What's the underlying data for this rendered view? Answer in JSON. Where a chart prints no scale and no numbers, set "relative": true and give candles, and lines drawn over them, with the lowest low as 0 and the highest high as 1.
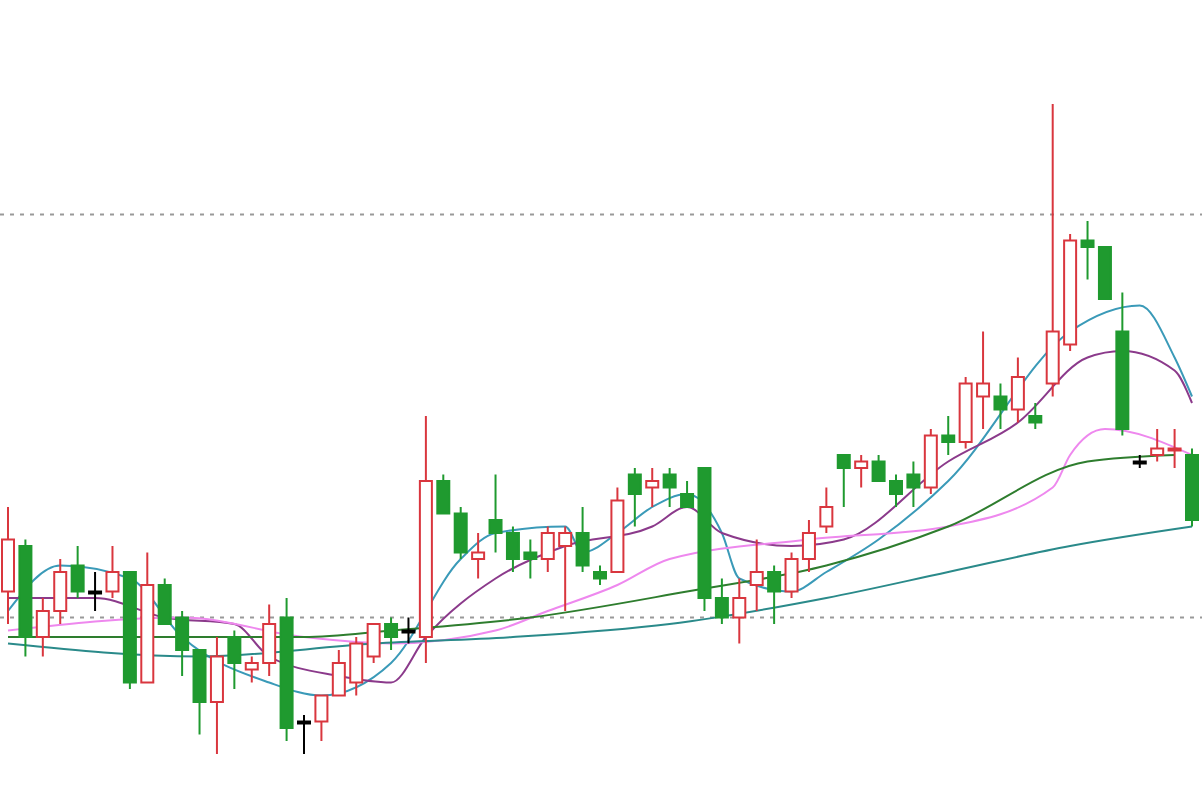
{
  "chart_data": {
    "type": "candlestick",
    "relative": true,
    "tick_labels": false,
    "categories": [
      null,
      null,
      null,
      null,
      null,
      null,
      null,
      null,
      null,
      null,
      null,
      null,
      null,
      null,
      null,
      null,
      null,
      null,
      null,
      null,
      null,
      null,
      null,
      null,
      null,
      null,
      null,
      null,
      null,
      null,
      null,
      null,
      null,
      null,
      null,
      null,
      null,
      null,
      null,
      null,
      null,
      null,
      null,
      null,
      null,
      null,
      null,
      null,
      null,
      null,
      null,
      null,
      null,
      null,
      null,
      null,
      null,
      null,
      null,
      null,
      null,
      null,
      null,
      null,
      null,
      null,
      null,
      null,
      null
    ],
    "ohlc": [
      [
        0.25,
        0.38,
        0.2,
        0.33
      ],
      [
        0.32,
        0.33,
        0.15,
        0.18
      ],
      [
        0.18,
        0.24,
        0.15,
        0.22
      ],
      [
        0.22,
        0.3,
        0.2,
        0.28
      ],
      [
        0.29,
        0.32,
        0.24,
        0.25
      ],
      [
        0.25,
        0.28,
        0.22,
        0.25
      ],
      [
        0.25,
        0.32,
        0.24,
        0.28
      ],
      [
        0.28,
        0.28,
        0.1,
        0.11
      ],
      [
        0.11,
        0.31,
        0.11,
        0.26
      ],
      [
        0.26,
        0.27,
        0.2,
        0.2
      ],
      [
        0.21,
        0.22,
        0.12,
        0.16
      ],
      [
        0.16,
        0.16,
        0.03,
        0.08
      ],
      [
        0.08,
        0.18,
        0,
        0.15
      ],
      [
        0.18,
        0.19,
        0.1,
        0.14
      ],
      [
        0.13,
        0.15,
        0.11,
        0.14
      ],
      [
        0.14,
        0.23,
        0.12,
        0.2
      ],
      [
        0.21,
        0.24,
        0.02,
        0.04
      ],
      [
        0.05,
        0.06,
        0,
        0.05
      ],
      [
        0.05,
        0.09,
        0.02,
        0.09
      ],
      [
        0.09,
        0.16,
        0.09,
        0.14
      ],
      [
        0.11,
        0.18,
        0.09,
        0.17
      ],
      [
        0.15,
        0.2,
        0.14,
        0.2
      ],
      [
        0.2,
        0.21,
        0.16,
        0.18
      ],
      [
        0.19,
        0.21,
        0.17,
        0.19
      ],
      [
        0.18,
        0.52,
        0.14,
        0.42
      ],
      [
        0.42,
        0.43,
        0.37,
        0.37
      ],
      [
        0.37,
        0.38,
        0.3,
        0.31
      ],
      [
        0.3,
        0.34,
        0.27,
        0.31
      ],
      [
        0.36,
        0.43,
        0.31,
        0.34
      ],
      [
        0.34,
        0.35,
        0.28,
        0.3
      ],
      [
        0.31,
        0.33,
        0.27,
        0.3
      ],
      [
        0.3,
        0.35,
        0.28,
        0.34
      ],
      [
        0.32,
        0.35,
        0.22,
        0.34
      ],
      [
        0.34,
        0.38,
        0.28,
        0.29
      ],
      [
        0.28,
        0.29,
        0.26,
        0.27
      ],
      [
        0.28,
        0.41,
        0.28,
        0.39
      ],
      [
        0.43,
        0.44,
        0.35,
        0.4
      ],
      [
        0.41,
        0.44,
        0.38,
        0.42
      ],
      [
        0.43,
        0.44,
        0.38,
        0.41
      ],
      [
        0.4,
        0.42,
        0.38,
        0.38
      ],
      [
        0.44,
        0.44,
        0.22,
        0.24
      ],
      [
        0.24,
        0.27,
        0.2,
        0.21
      ],
      [
        0.21,
        0.27,
        0.17,
        0.24
      ],
      [
        0.26,
        0.33,
        0.22,
        0.28
      ],
      [
        0.28,
        0.29,
        0.2,
        0.25
      ],
      [
        0.25,
        0.31,
        0.24,
        0.3
      ],
      [
        0.3,
        0.36,
        0.28,
        0.34
      ],
      [
        0.35,
        0.41,
        0.34,
        0.38
      ],
      [
        0.46,
        0.46,
        0.38,
        0.44
      ],
      [
        0.44,
        0.46,
        0.41,
        0.45
      ],
      [
        0.45,
        0.46,
        0.42,
        0.42
      ],
      [
        0.42,
        0.43,
        0.38,
        0.4
      ],
      [
        0.43,
        0.45,
        0.38,
        0.41
      ],
      [
        0.41,
        0.5,
        0.4,
        0.49
      ],
      [
        0.49,
        0.52,
        0.46,
        0.48
      ],
      [
        0.48,
        0.58,
        0.47,
        0.57
      ],
      [
        0.55,
        0.65,
        0.5,
        0.57
      ],
      [
        0.55,
        0.57,
        0.5,
        0.53
      ],
      [
        0.53,
        0.61,
        0.51,
        0.58
      ],
      [
        0.52,
        0.54,
        0.5,
        0.51
      ],
      [
        0.57,
        1,
        0.55,
        0.65
      ],
      [
        0.63,
        0.8,
        0.62,
        0.79
      ],
      [
        0.79,
        0.82,
        0.73,
        0.78
      ],
      [
        0.78,
        0.78,
        0.7,
        0.7
      ],
      [
        0.65,
        0.71,
        0.49,
        0.5
      ],
      [
        0.45,
        0.46,
        0.44,
        0.45
      ],
      [
        0.46,
        0.5,
        0.45,
        0.47
      ],
      [
        0.47,
        0.5,
        0.44,
        0.47
      ],
      [
        0.46,
        0.47,
        0.35,
        0.36
      ]
    ],
    "colors": [
      "#d9363e",
      "#1f9a2f",
      "#d9363e",
      "#d9363e",
      "#1f9a2f",
      "#000000",
      "#d9363e",
      "#1f9a2f",
      "#d9363e",
      "#1f9a2f",
      "#1f9a2f",
      "#1f9a2f",
      "#d9363e",
      "#1f9a2f",
      "#d9363e",
      "#d9363e",
      "#1f9a2f",
      "#000000",
      "#d9363e",
      "#d9363e",
      "#d9363e",
      "#d9363e",
      "#1f9a2f",
      "#000000",
      "#d9363e",
      "#1f9a2f",
      "#1f9a2f",
      "#d9363e",
      "#1f9a2f",
      "#1f9a2f",
      "#1f9a2f",
      "#d9363e",
      "#d9363e",
      "#1f9a2f",
      "#1f9a2f",
      "#d9363e",
      "#1f9a2f",
      "#d9363e",
      "#1f9a2f",
      "#1f9a2f",
      "#1f9a2f",
      "#1f9a2f",
      "#d9363e",
      "#d9363e",
      "#1f9a2f",
      "#d9363e",
      "#d9363e",
      "#d9363e",
      "#1f9a2f",
      "#d9363e",
      "#1f9a2f",
      "#1f9a2f",
      "#1f9a2f",
      "#d9363e",
      "#1f9a2f",
      "#d9363e",
      "#d9363e",
      "#1f9a2f",
      "#d9363e",
      "#1f9a2f",
      "#d9363e",
      "#d9363e",
      "#1f9a2f",
      "#1f9a2f",
      "#1f9a2f",
      "#000000",
      "#d9363e",
      "#d9363e",
      "#1f9a2f"
    ],
    "series": [
      {
        "type": "line",
        "color": "#3a9ab8",
        "values": [
          0.22,
          null,
          null,
          0.29,
          null,
          null,
          null,
          0.27,
          null,
          null,
          0.18,
          null,
          null,
          null,
          null,
          0.11,
          null,
          null,
          0.09,
          null,
          null,
          null,
          0.14,
          null,
          null,
          null,
          0.3,
          null,
          0.34,
          null,
          null,
          null,
          0.35,
          0.31,
          null,
          0.34,
          null,
          0.38,
          null,
          0.4,
          null,
          0.34,
          0.27,
          null,
          null,
          0.25,
          null,
          0.28,
          null,
          null,
          0.33,
          null,
          null,
          null,
          0.42,
          null,
          null,
          null,
          null,
          null,
          null,
          0.65,
          null,
          null,
          null,
          0.69,
          null,
          0.61,
          0.55
        ]
      },
      {
        "type": "line",
        "color": "#8b3a8b",
        "values": [
          0.24,
          null,
          null,
          null,
          null,
          0.24,
          null,
          null,
          null,
          0.21,
          null,
          null,
          null,
          0.2,
          null,
          0.15,
          null,
          null,
          null,
          0.12,
          null,
          null,
          0.11,
          null,
          0.18,
          null,
          null,
          null,
          0.27,
          null,
          null,
          null,
          0.32,
          null,
          null,
          null,
          null,
          0.35,
          null,
          0.38,
          null,
          0.34,
          null,
          null,
          null,
          0.32,
          null,
          null,
          0.33,
          null,
          null,
          null,
          null,
          null,
          0.45,
          null,
          null,
          null,
          0.51,
          null,
          null,
          null,
          0.61,
          null,
          0.62,
          null,
          null,
          0.59,
          0.54
        ]
      },
      {
        "type": "line",
        "color": "#ee88ee",
        "values": [
          0.19,
          null,
          null,
          null,
          null,
          null,
          null,
          null,
          null,
          null,
          0.21,
          null,
          null,
          null,
          null,
          null,
          null,
          0.18,
          null,
          null,
          null,
          null,
          0.17,
          null,
          null,
          null,
          null,
          null,
          0.19,
          null,
          null,
          0.22,
          null,
          null,
          null,
          0.26,
          null,
          null,
          0.3,
          null,
          null,
          null,
          null,
          null,
          null,
          null,
          0.33,
          null,
          null,
          null,
          null,
          null,
          null,
          null,
          0.35,
          null,
          null,
          null,
          null,
          null,
          0.41,
          0.46,
          null,
          0.5,
          null,
          null,
          null,
          null,
          0.46
        ]
      },
      {
        "type": "line",
        "color": "#2e7d2e",
        "values": [
          0.18,
          null,
          null,
          null,
          null,
          null,
          null,
          null,
          0.18,
          null,
          null,
          null,
          null,
          null,
          null,
          null,
          null,
          0.18,
          null,
          null,
          null,
          null,
          0.19,
          null,
          null,
          null,
          null,
          null,
          null,
          null,
          0.21,
          null,
          null,
          null,
          null,
          null,
          null,
          null,
          null,
          0.25,
          null,
          null,
          null,
          null,
          null,
          null,
          null,
          0.29,
          null,
          null,
          null,
          null,
          null,
          null,
          0.35,
          null,
          null,
          null,
          null,
          null,
          null,
          null,
          0.45,
          null,
          null,
          null,
          null,
          0.46,
          null
        ]
      },
      {
        "type": "line",
        "color": "#2a8a8a",
        "values": [
          0.17,
          null,
          null,
          null,
          null,
          null,
          null,
          null,
          null,
          null,
          null,
          0.15,
          null,
          null,
          null,
          null,
          null,
          null,
          null,
          null,
          null,
          0.17,
          null,
          null,
          null,
          null,
          null,
          null,
          null,
          0.18,
          null,
          null,
          null,
          null,
          null,
          null,
          null,
          null,
          0.2,
          null,
          null,
          null,
          null,
          null,
          null,
          null,
          null,
          0.24,
          null,
          null,
          null,
          null,
          null,
          null,
          0.28,
          null,
          null,
          null,
          null,
          null,
          null,
          0.32,
          null,
          null,
          null,
          null,
          null,
          null,
          0.35
        ]
      }
    ],
    "ref_lines": [
      {
        "axis": "y",
        "value": 0.83,
        "color": "#999999",
        "line_style": "dotted"
      },
      {
        "axis": "y",
        "value": 0.21,
        "color": "#999999",
        "line_style": "dotted"
      }
    ]
  }
}
